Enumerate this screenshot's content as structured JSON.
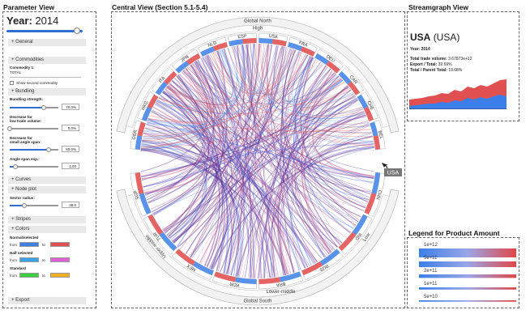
{
  "param": {
    "title": "Parameter View",
    "year_label": "Year:",
    "year_value": "2014",
    "year_fraction": 0.93,
    "sections": {
      "general": "+ General",
      "commodities": "+ Commodities",
      "bundling": "+ Bundling",
      "curves": "+ Curves",
      "node_plot": "+ Node plot",
      "stripes": "+ Stripes",
      "colors": "+ Colors",
      "export": "+ Export"
    },
    "commodity_label": "Commodity 1:",
    "commodity_value": "TOTAL",
    "show_second": "Show second commodity",
    "bundling_strength_label": "Bundling strength:",
    "bundling_strength_value": "70,0%",
    "bundling_strength_fraction": 0.7,
    "decrease_low_label1": "Decrease for",
    "decrease_low_label2": "low trade volume:",
    "decrease_low_value": "0,0%",
    "decrease_low_fraction": 0.0,
    "decrease_small_label1": "Decrease for",
    "decrease_small_label2": "small angle span:",
    "decrease_small_value": "80,0%",
    "decrease_small_fraction": 0.8,
    "angle_label": "Angle span exp.:",
    "angle_value": "4,00",
    "angle_fraction": 0.12,
    "sector_label": "Sector radius:",
    "sector_value": "38,0",
    "sector_fraction": 0.3,
    "colors_normal": "Normal/selected",
    "colors_half": "Half selected",
    "colors_stand": "Standard",
    "from": "from",
    "to": "to",
    "colors_hex": {
      "normal_from": "#3d7fe0",
      "normal_to": "#e05050",
      "half_from": "#3aa4e8",
      "half_to": "#e060d8",
      "stand_from": "#3ad040",
      "stand_to": "#f0b020"
    }
  },
  "central": {
    "title": "Central View  (Section 5.1-5.4)",
    "outer_labels": {
      "global_north": "Global North",
      "global_south": "Global South",
      "high": "High",
      "low": "Low",
      "lower_middle": "Lower-middle",
      "upper_middle": "Upper-middle"
    },
    "countries": [
      "GBR",
      "HKG",
      "ITA",
      "JPN",
      "NLD",
      "ESP",
      "USA",
      "FRA",
      "DEU",
      "CAN",
      "CHE",
      "BEL",
      "CHN",
      "IND",
      "RUS",
      "BRA",
      "KOR",
      "MEX",
      "TUR",
      "SGP"
    ],
    "hover_label": "USA",
    "colors": {
      "north": "#e04848",
      "south": "#3c7fe8",
      "curve": "#5a2a90"
    }
  },
  "stream": {
    "title": "Streamgraph View",
    "country_bold": "USA",
    "country_paren": "(USA)",
    "year_line": "Year: 2014",
    "total_label": "Total trade volume:",
    "total_value": "3.67873e+12",
    "export_label": "Export / Total:",
    "export_value": "39.69%",
    "parent_label": "Total / Parent Total:",
    "parent_value": "19.68%"
  },
  "legend": {
    "title": "Legend for Product Amount",
    "items": [
      "1e+12",
      "5e+11",
      "2e+11",
      "1e+11",
      "5e+10"
    ]
  }
}
